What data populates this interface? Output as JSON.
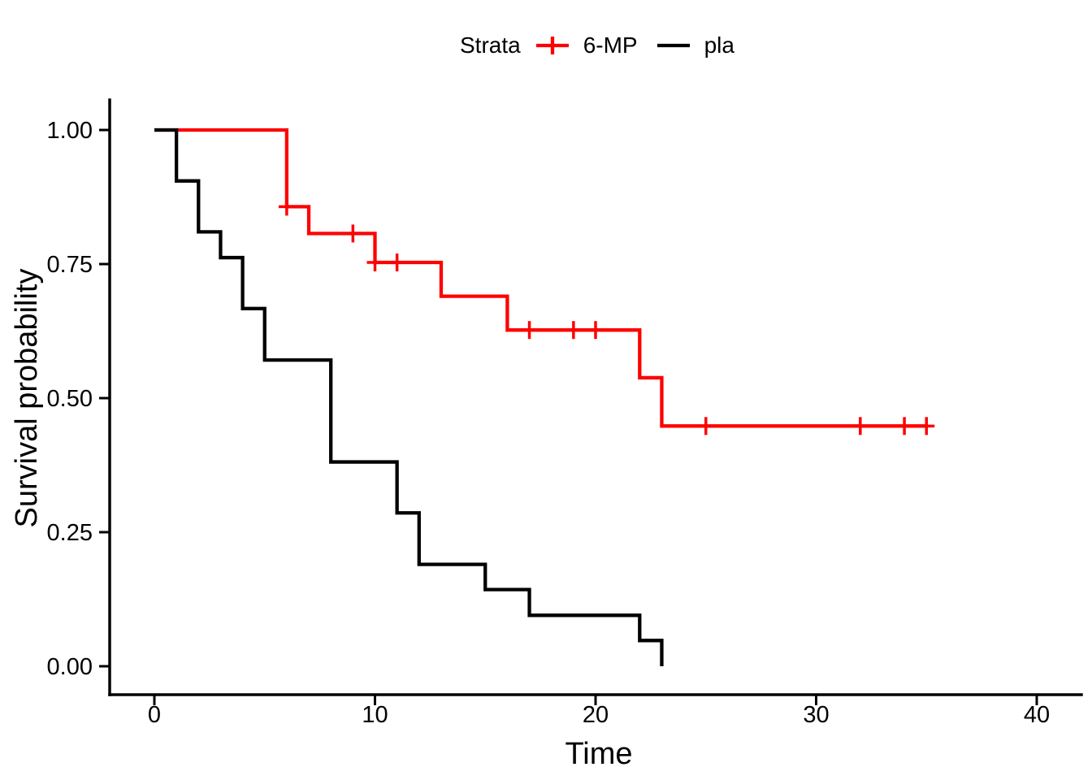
{
  "chart_data": {
    "type": "line",
    "subtype": "kaplan-meier-step",
    "title": "",
    "xlabel": "Time",
    "ylabel": "Survival probability",
    "xlim": [
      -2,
      42
    ],
    "ylim": [
      -0.05,
      1.05
    ],
    "grid": "off",
    "axis_color": "#000000",
    "background": "#ffffff",
    "legend": {
      "title": "Strata",
      "position": "top"
    },
    "x_ticks": [
      {
        "v": 0,
        "label": "0"
      },
      {
        "v": 10,
        "label": "10"
      },
      {
        "v": 20,
        "label": "20"
      },
      {
        "v": 30,
        "label": "30"
      },
      {
        "v": 40,
        "label": "40"
      }
    ],
    "y_ticks": [
      {
        "v": 0.0,
        "label": "0.00"
      },
      {
        "v": 0.25,
        "label": "0.25"
      },
      {
        "v": 0.5,
        "label": "0.50"
      },
      {
        "v": 0.75,
        "label": "0.75"
      },
      {
        "v": 1.0,
        "label": "1.00"
      }
    ],
    "series": [
      {
        "name": "6-MP",
        "color": "#ff0000",
        "censor_shape": "plus",
        "steps": [
          [
            0,
            1.0
          ],
          [
            6,
            0.857
          ],
          [
            7,
            0.807
          ],
          [
            10,
            0.753
          ],
          [
            13,
            0.69
          ],
          [
            16,
            0.627
          ],
          [
            22,
            0.538
          ],
          [
            23,
            0.448
          ]
        ],
        "end_time": 35,
        "censors": [
          [
            6,
            0.857
          ],
          [
            9,
            0.807
          ],
          [
            10,
            0.753
          ],
          [
            11,
            0.753
          ],
          [
            17,
            0.627
          ],
          [
            19,
            0.627
          ],
          [
            20,
            0.627
          ],
          [
            25,
            0.448
          ],
          [
            32,
            0.448
          ],
          [
            34,
            0.448
          ],
          [
            35,
            0.448
          ]
        ]
      },
      {
        "name": "pla",
        "color": "#000000",
        "censor_shape": "plus",
        "steps": [
          [
            0,
            1.0
          ],
          [
            1,
            0.905
          ],
          [
            2,
            0.81
          ],
          [
            3,
            0.762
          ],
          [
            4,
            0.667
          ],
          [
            5,
            0.571
          ],
          [
            8,
            0.381
          ],
          [
            11,
            0.286
          ],
          [
            12,
            0.19
          ],
          [
            15,
            0.143
          ],
          [
            17,
            0.095
          ],
          [
            22,
            0.048
          ],
          [
            23,
            0.0
          ]
        ],
        "end_time": 23,
        "censors": []
      }
    ]
  }
}
